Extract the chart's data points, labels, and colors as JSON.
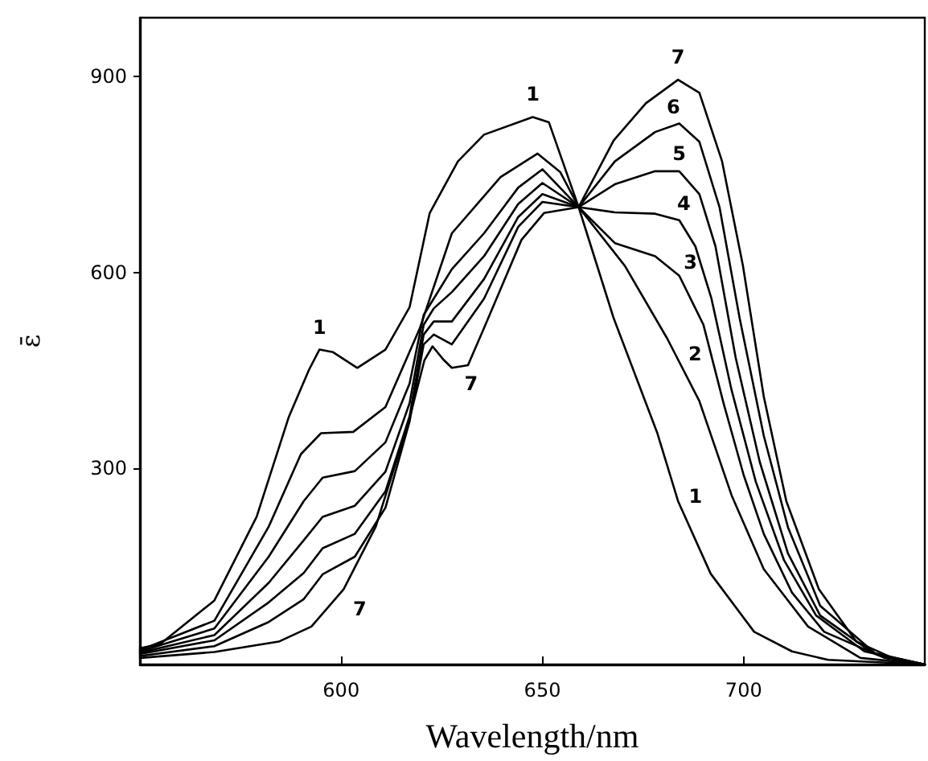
{
  "chart_data": {
    "type": "line",
    "xlabel": "Wavelength/nm",
    "ylabel": "ε̄",
    "xlim": [
      550,
      745
    ],
    "ylim": [
      0,
      990
    ],
    "xticks": [
      600,
      650,
      700
    ],
    "yticks": [
      300,
      600,
      900
    ],
    "grid": false,
    "marker": "none",
    "line_style": "solid",
    "series": [
      {
        "name": "1",
        "color": "#000000",
        "x": [
          550,
          555,
          568.5,
          579,
          587,
          592,
          594.6,
          598,
          604,
          611,
          617,
          622,
          629,
          635.5,
          647.6,
          651.6,
          659,
          667.7,
          678.5,
          683.7,
          691.8,
          702.6,
          712,
          721,
          745
        ],
        "values": [
          25,
          31,
          98,
          226,
          379,
          451,
          482,
          478,
          454,
          482,
          547,
          691,
          770,
          811,
          838,
          830,
          700,
          530,
          355,
          250,
          139,
          50,
          20,
          7,
          0
        ]
      },
      {
        "name": "2",
        "color": "#000000",
        "x": [
          550,
          568.5,
          582,
          590,
          595,
          603,
          611,
          619.5,
          627.5,
          639.6,
          648.8,
          654.4,
          659,
          670.5,
          681,
          689,
          697,
          705,
          716,
          729,
          745
        ],
        "values": [
          22,
          67,
          211,
          322,
          354,
          356,
          394,
          514,
          660,
          746,
          782,
          754,
          700,
          610,
          499,
          403,
          259,
          146,
          58,
          10,
          0
        ]
      },
      {
        "color": "#000000",
        "x": [
          550,
          568.5,
          582,
          590.7,
          595.4,
          603.4,
          611,
          617,
          620.5,
          623,
          627.5,
          635.5,
          644,
          650,
          659,
          668,
          678,
          684,
          690,
          695,
          700,
          705,
          712,
          720,
          735,
          745
        ],
        "name": "3",
        "values": [
          20,
          55,
          165,
          250,
          286,
          296,
          340,
          430,
          535,
          560,
          605,
          660,
          730,
          758,
          700,
          645,
          625,
          595,
          520,
          400,
          290,
          200,
          110,
          50,
          10,
          0
        ]
      },
      {
        "color": "#000000",
        "x": [
          550,
          568.5,
          582,
          590.7,
          595.4,
          603.4,
          611,
          617,
          620.5,
          623,
          627.5,
          635.5,
          644,
          650,
          659,
          668,
          678,
          684,
          688,
          692,
          697,
          703,
          710,
          718,
          730,
          745
        ],
        "name": "4",
        "values": [
          18,
          45,
          125,
          190,
          226,
          243,
          295,
          400,
          520,
          545,
          570,
          625,
          705,
          737,
          700,
          692,
          690,
          680,
          640,
          560,
          420,
          280,
          160,
          75,
          20,
          0
        ]
      },
      {
        "color": "#000000",
        "x": [
          550,
          568.5,
          582,
          590.7,
          595.4,
          603.4,
          611,
          617,
          620.5,
          623,
          627.5,
          635.5,
          644,
          650,
          659,
          668,
          678,
          684,
          689,
          693,
          698,
          704,
          711,
          719,
          732,
          745
        ],
        "name": "5",
        "values": [
          16,
          37,
          95,
          140,
          178,
          200,
          265,
          380,
          505,
          525,
          525,
          590,
          685,
          720,
          700,
          735,
          755,
          755,
          720,
          640,
          470,
          310,
          170,
          75,
          18,
          0
        ]
      },
      {
        "color": "#000000",
        "x": [
          550,
          568.5,
          582,
          590.7,
          595.4,
          603.4,
          611,
          617,
          620.5,
          623,
          627.5,
          635.5,
          644,
          650,
          659,
          668,
          678,
          684,
          689,
          694,
          699,
          705,
          711,
          719,
          733,
          745
        ],
        "name": "6",
        "values": [
          13,
          28,
          65,
          100,
          138,
          165,
          240,
          372,
          490,
          505,
          490,
          560,
          670,
          708,
          700,
          770,
          815,
          828,
          800,
          700,
          530,
          350,
          210,
          90,
          15,
          0
        ]
      },
      {
        "name": "7",
        "color": "#000000",
        "x": [
          550,
          568.5,
          584.5,
          592.6,
          600.6,
          608.6,
          616.7,
          620.7,
          622.7,
          625.5,
          627.5,
          631.5,
          635.5,
          644.8,
          650.4,
          659,
          667.7,
          675.7,
          683.7,
          689,
          694.6,
          699.8,
          705,
          710.6,
          718.7,
          728,
          737,
          745
        ],
        "values": [
          10,
          19,
          35,
          58,
          115,
          211,
          370,
          466,
          487,
          466,
          454,
          458,
          515,
          650,
          691,
          700,
          802,
          859,
          895,
          875,
          771,
          611,
          410,
          250,
          115,
          35,
          10,
          0
        ]
      }
    ]
  }
}
